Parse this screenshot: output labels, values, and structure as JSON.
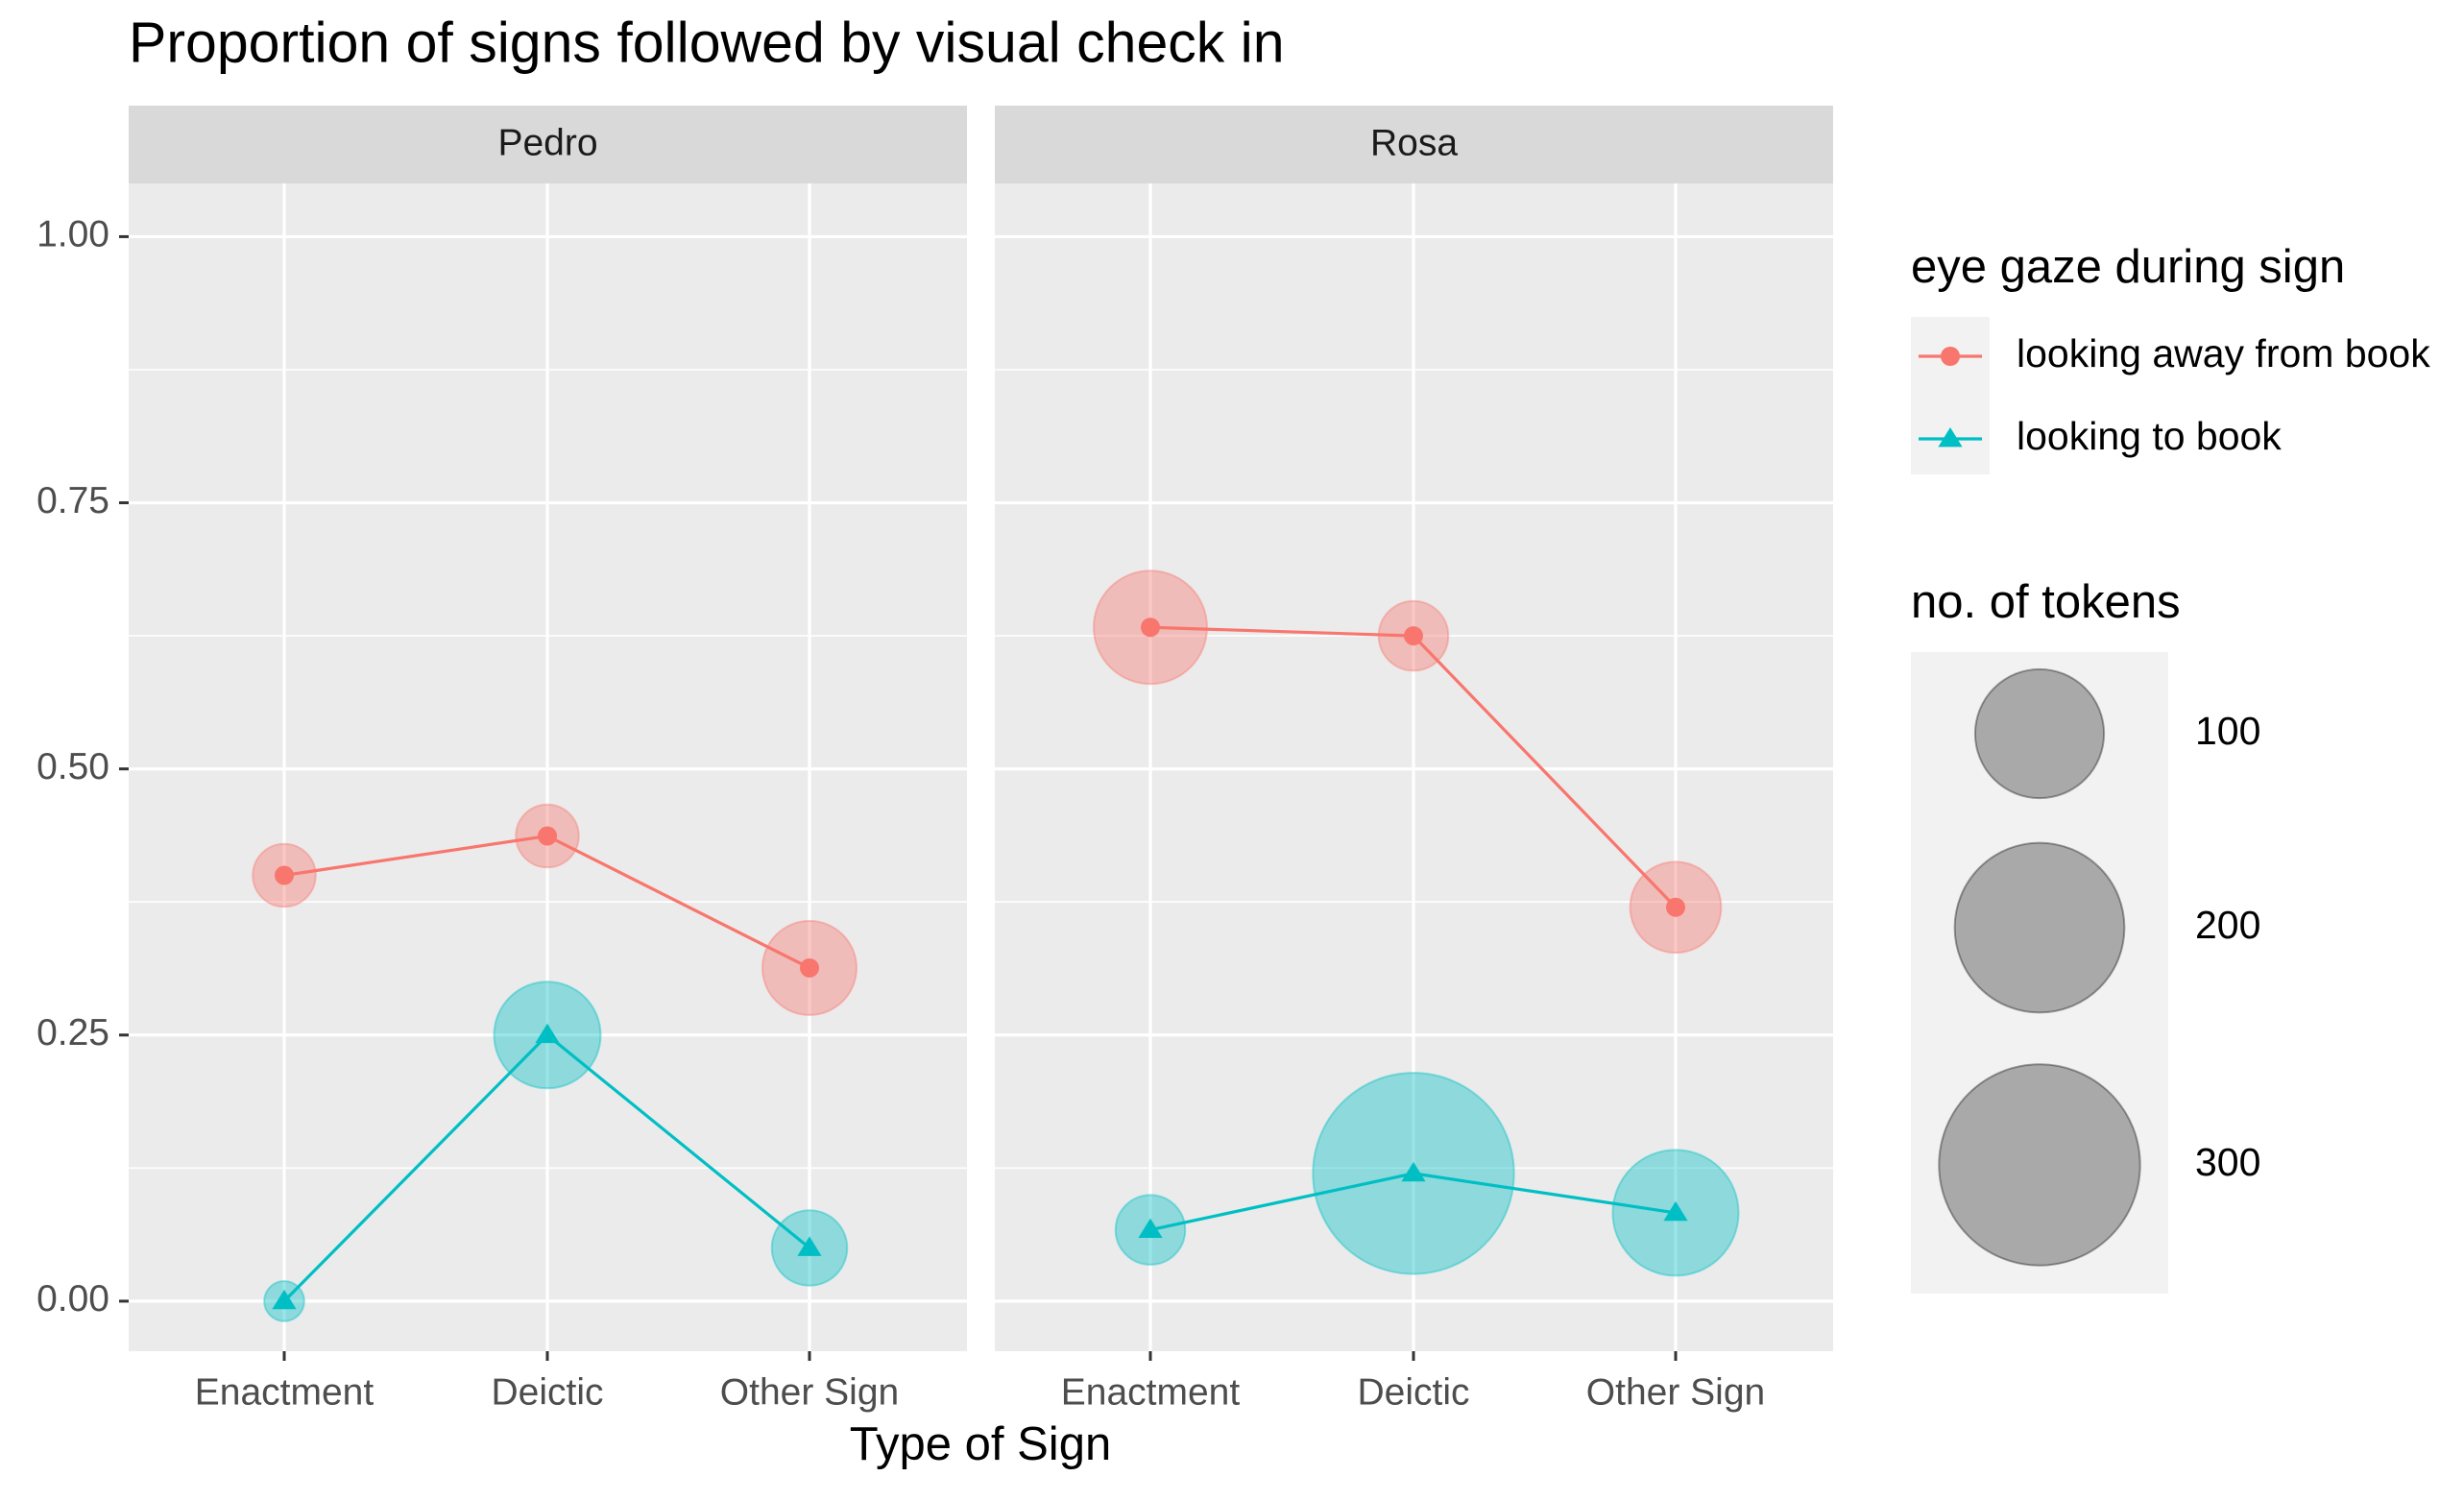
{
  "chart_data": {
    "type": "line",
    "title": "Proportion of signs followed by visual check in",
    "x_label": "Type of Sign",
    "categories": [
      "Enactment",
      "Deictic",
      "Other Sign"
    ],
    "ylim": [
      -0.047,
      1.05
    ],
    "yticks": [
      {
        "value": 0,
        "label": "0.00"
      },
      {
        "value": 0.25,
        "label": "0.25"
      },
      {
        "value": 0.5,
        "label": "0.50"
      },
      {
        "value": 0.75,
        "label": "0.75"
      },
      {
        "value": 1,
        "label": "1.00"
      }
    ],
    "grid": true,
    "legend_title": "eye gaze during sign",
    "series": [
      {
        "name": "looking away from book",
        "color": "#F8766D",
        "marker": "circle"
      },
      {
        "name": "looking to book",
        "color": "#00BFC4",
        "marker": "triangle"
      }
    ],
    "panels": [
      {
        "name": "Pedro",
        "values": [
          [
            0.4,
            0.437,
            0.313
          ],
          [
            0.0,
            0.25,
            0.05
          ]
        ],
        "sizes": [
          [
            11,
            11,
            42
          ],
          [
            1,
            60,
            21
          ]
        ]
      },
      {
        "name": "Rosa",
        "values": [
          [
            0.633,
            0.625,
            0.37
          ],
          [
            0.067,
            0.12,
            0.083
          ]
        ],
        "sizes": [
          [
            71,
            16,
            38
          ],
          [
            16,
            300,
            94
          ]
        ]
      }
    ],
    "size_title": "no. of tokens",
    "size_breaks": [
      100,
      200,
      300
    ]
  }
}
